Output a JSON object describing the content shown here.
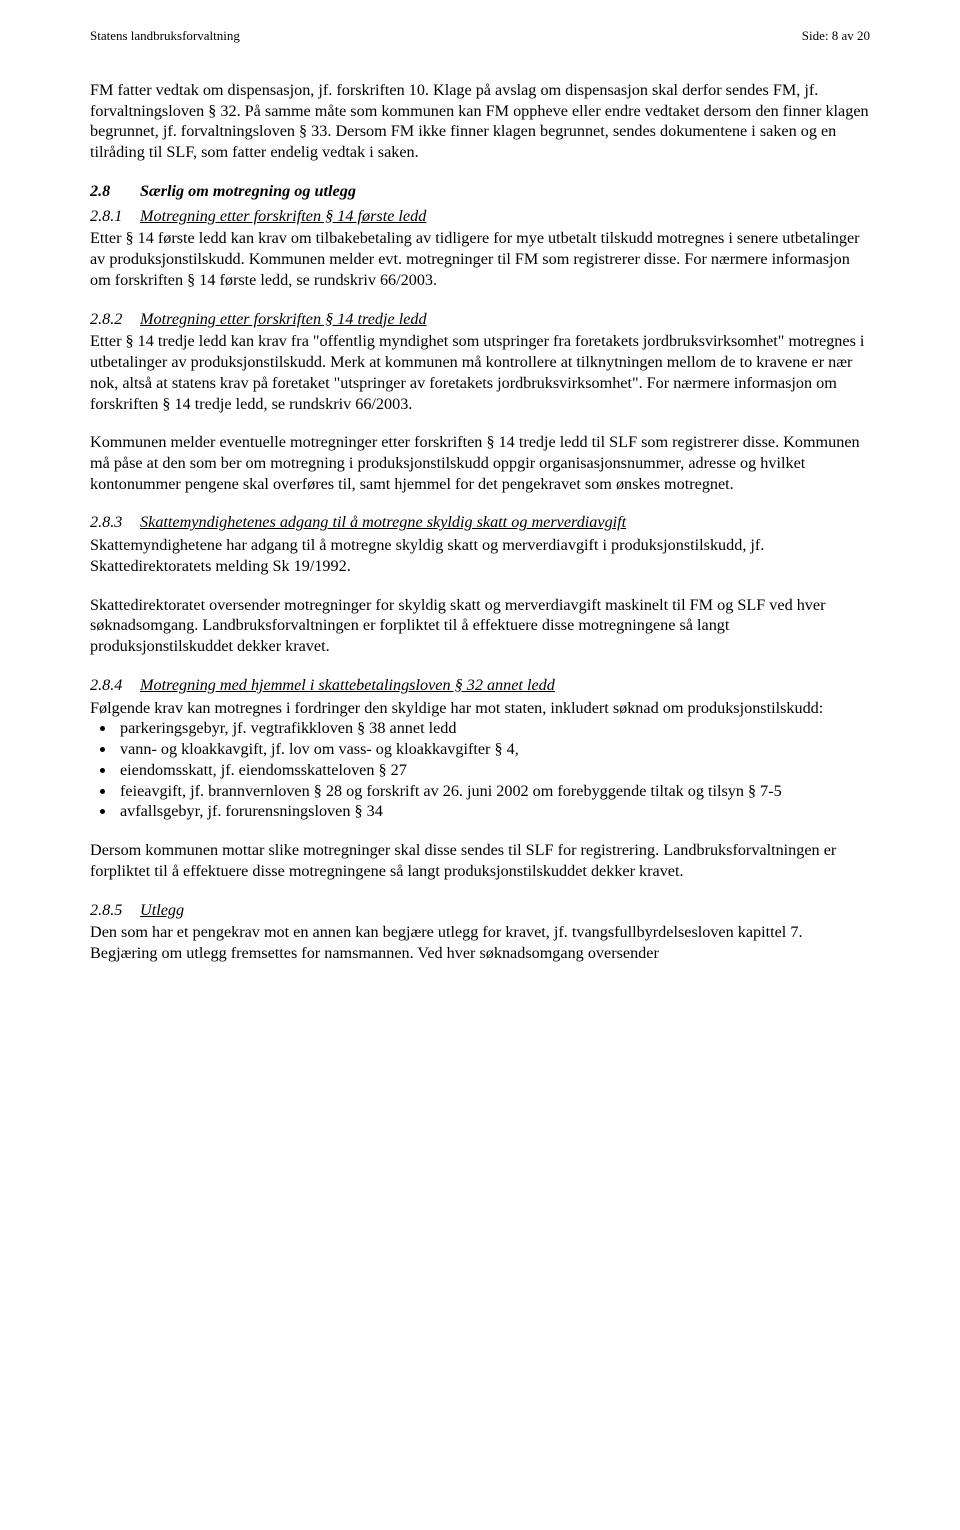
{
  "header": {
    "left": "Statens landbruksforvaltning",
    "right": "Side: 8 av 20"
  },
  "intro": {
    "p1": "FM fatter vedtak om dispensasjon, jf. forskriften 10. Klage på avslag om dispensasjon skal derfor sendes FM, jf. forvaltningsloven § 32. På samme måte som kommunen kan FM oppheve eller endre vedtaket dersom den finner klagen begrunnet, jf. forvaltningsloven § 33. Dersom FM ikke finner klagen begrunnet, sendes dokumentene i saken og en tilråding til SLF, som fatter endelig vedtak i saken."
  },
  "s28": {
    "num": "2.8",
    "title": "Særlig om motregning og utlegg"
  },
  "s281": {
    "num": "2.8.1",
    "title": "Motregning etter forskriften § 14 første ledd",
    "p1": "Etter § 14 første ledd kan krav om tilbakebetaling av tidligere for mye utbetalt tilskudd motregnes i senere utbetalinger av produksjonstilskudd. Kommunen melder evt. motregninger til FM som registrerer disse. For nærmere informasjon om forskriften § 14 første ledd, se rundskriv 66/2003."
  },
  "s282": {
    "num": "2.8.2",
    "title": "Motregning etter forskriften § 14 tredje ledd",
    "p1": "Etter § 14 tredje ledd kan krav fra \"offentlig myndighet som utspringer fra foretakets jordbruksvirksomhet\" motregnes i utbetalinger av produksjonstilskudd. Merk at kommunen må kontrollere at tilknytningen mellom de to kravene er nær nok, altså at statens krav på foretaket \"utspringer av foretakets jordbruksvirksomhet\". For nærmere informasjon om forskriften § 14 tredje ledd, se rundskriv 66/2003.",
    "p2": "Kommunen melder eventuelle motregninger etter forskriften § 14 tredje ledd til SLF som registrerer disse. Kommunen må påse at den som ber om motregning i produksjonstilskudd oppgir organisasjonsnummer, adresse og hvilket kontonummer pengene skal overføres til, samt hjemmel for det pengekravet som ønskes motregnet."
  },
  "s283": {
    "num": "2.8.3",
    "title": "Skattemyndighetenes adgang til å motregne skyldig skatt og merverdiavgift",
    "p1": "Skattemyndighetene har adgang til å motregne skyldig skatt og merverdiavgift i produksjonstilskudd, jf. Skattedirektoratets melding Sk 19/1992.",
    "p2": "Skattedirektoratet oversender motregninger for skyldig skatt og merverdiavgift maskinelt til FM og SLF ved hver søknadsomgang. Landbruksforvaltningen er forpliktet til å effektuere disse motregningene så langt produksjonstilskuddet dekker kravet."
  },
  "s284": {
    "num": "2.8.4",
    "title": "Motregning med hjemmel i skattebetalingsloven § 32 annet ledd",
    "p1": "Følgende krav kan motregnes i fordringer den skyldige har mot staten, inkludert søknad om produksjonstilskudd:",
    "bullets": [
      "parkeringsgebyr, jf. vegtrafikkloven § 38 annet ledd",
      "vann- og kloakkavgift, jf. lov om vass- og kloakkavgifter § 4,",
      "eiendomsskatt, jf. eiendomsskatteloven § 27",
      "feieavgift, jf. brannvernloven § 28 og forskrift av 26. juni 2002 om forebyggende tiltak og tilsyn § 7-5",
      "avfallsgebyr, jf. forurensningsloven § 34"
    ],
    "p2": "Dersom kommunen mottar slike motregninger skal disse sendes til SLF for registrering. Landbruksforvaltningen er forpliktet til å effektuere disse motregningene så langt produksjonstilskuddet dekker kravet."
  },
  "s285": {
    "num": "2.8.5",
    "title": "Utlegg",
    "p1": "Den som har et pengekrav mot en annen kan begjære utlegg for kravet, jf. tvangsfullbyrdelsesloven kapittel 7. Begjæring om utlegg fremsettes for namsmannen. Ved hver søknadsomgang oversender"
  }
}
